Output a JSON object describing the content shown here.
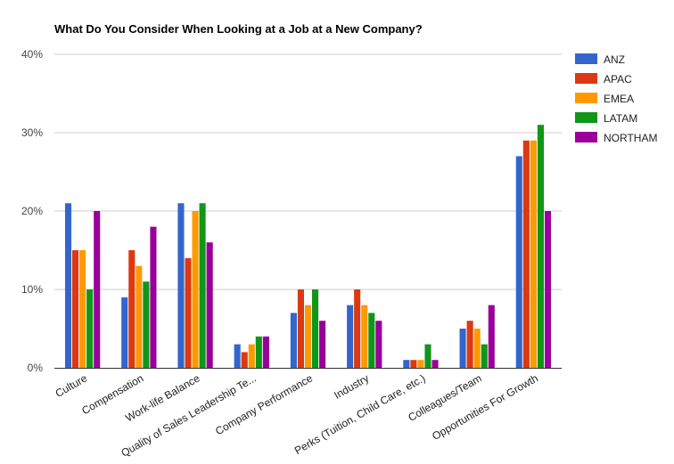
{
  "chart_data": {
    "type": "bar",
    "title": "What Do You Consider When Looking at a Job at a New Company?",
    "xlabel": "",
    "ylabel": "",
    "ylim": [
      0,
      40
    ],
    "yticks": [
      "0%",
      "10%",
      "20%",
      "30%",
      "40%"
    ],
    "y_unit": "%",
    "grid": true,
    "legend_position": "right",
    "categories": [
      "Culture",
      "Compensation",
      "Work-life Balance",
      "Quality of Sales Leadership Te...",
      "Company Performance",
      "Industry",
      "Perks (Tuition, Child Care, etc.)",
      "Colleagues/Team",
      "Opportunities For Growth"
    ],
    "series": [
      {
        "name": "ANZ",
        "color": "#3366cc",
        "values": [
          21,
          9,
          21,
          3,
          7,
          8,
          1,
          5,
          27
        ]
      },
      {
        "name": "APAC",
        "color": "#dc3912",
        "values": [
          15,
          15,
          14,
          2,
          10,
          10,
          1,
          6,
          29
        ]
      },
      {
        "name": "EMEA",
        "color": "#ff9900",
        "values": [
          15,
          13,
          20,
          3,
          8,
          8,
          1,
          5,
          29
        ]
      },
      {
        "name": "LATAM",
        "color": "#109618",
        "values": [
          10,
          11,
          21,
          4,
          10,
          7,
          3,
          3,
          31
        ]
      },
      {
        "name": "NORTHAM",
        "color": "#990099",
        "values": [
          20,
          18,
          16,
          4,
          6,
          6,
          1,
          8,
          20
        ]
      }
    ]
  }
}
